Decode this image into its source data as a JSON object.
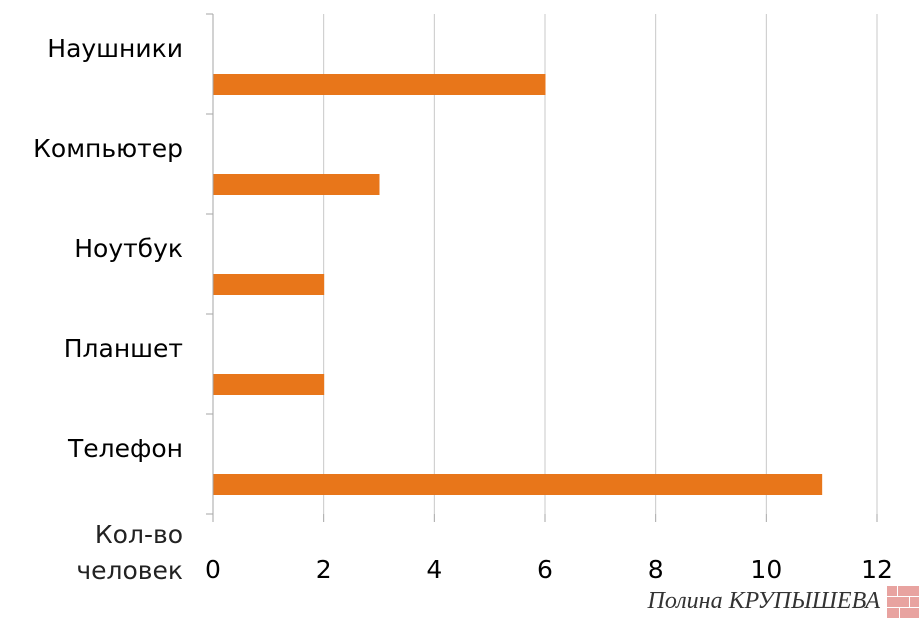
{
  "chart_data": {
    "type": "bar",
    "orientation": "horizontal",
    "categories": [
      "Наушники",
      "Компьютер",
      "Ноутбук",
      "Планшет",
      "Телефон"
    ],
    "values": [
      6,
      3,
      2,
      2,
      11
    ],
    "xlabel": "Кол-во человек",
    "xlim": [
      0,
      12
    ],
    "xticks": [
      0,
      2,
      4,
      6,
      8,
      10,
      12
    ],
    "grid": true,
    "bar_color": "#e8761a"
  },
  "author": "Полина КРУПЫШЕВА"
}
